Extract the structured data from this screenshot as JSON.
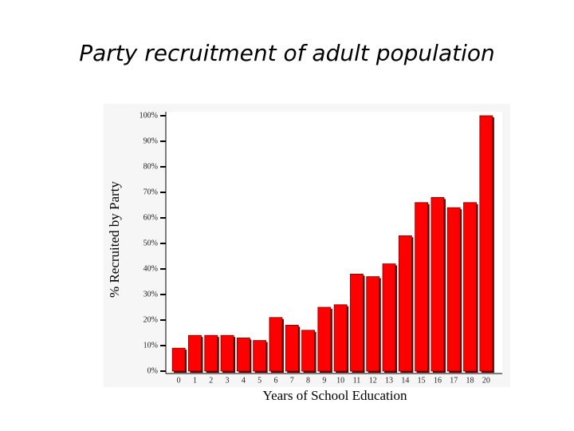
{
  "chart_data": {
    "type": "bar",
    "title": "Party recruitment of adult population",
    "x_label": "Years of School Education",
    "y_label": "% Recruited by Party",
    "categories": [
      "0",
      "1",
      "2",
      "3",
      "4",
      "5",
      "6",
      "7",
      "8",
      "9",
      "10",
      "11",
      "12",
      "13",
      "14",
      "15",
      "16",
      "17",
      "18",
      "20"
    ],
    "values": [
      9,
      14,
      14,
      14,
      13,
      12,
      21,
      18,
      16,
      25,
      26,
      38,
      37,
      42,
      53,
      66,
      68,
      64,
      66,
      100
    ],
    "color": "#ff0000",
    "ylim": [
      0,
      100
    ],
    "yticks": [
      {
        "value": 0,
        "label": "0%"
      },
      {
        "value": 10,
        "label": "10%"
      },
      {
        "value": 20,
        "label": "20%"
      },
      {
        "value": 30,
        "label": "30%"
      },
      {
        "value": 40,
        "label": "40%"
      },
      {
        "value": 50,
        "label": "50%"
      },
      {
        "value": 60,
        "label": "60%"
      },
      {
        "value": 70,
        "label": "70%"
      },
      {
        "value": 80,
        "label": "80%"
      },
      {
        "value": 90,
        "label": "90%"
      },
      {
        "value": 100,
        "label": "100%"
      }
    ]
  }
}
